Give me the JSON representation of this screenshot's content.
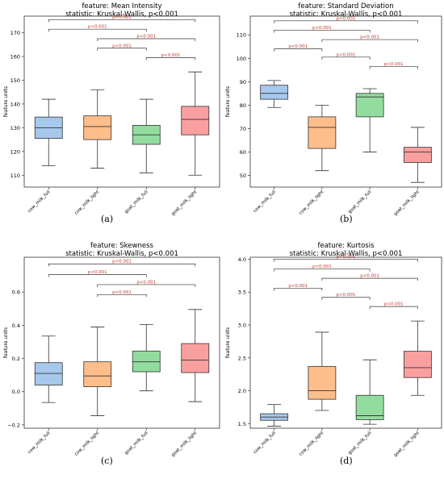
{
  "captions": [
    "(a)",
    "(b)",
    "(c)",
    "(d)"
  ],
  "colors": {
    "box": [
      "#a6c8ec",
      "#fdbe8c",
      "#93dca0",
      "#fa9fa0"
    ],
    "sig": "#c0392b",
    "axis": "#333333"
  },
  "chart_data": [
    {
      "type": "box",
      "title": "feature: Mean Intensity",
      "subtitle": "statistic: Kruskal-Wallis, p<0.001",
      "xlabel": "",
      "ylabel": "feature units",
      "categories": [
        "cow_milk_full",
        "cow_milk_light",
        "goat_milk_full",
        "goat_milk_light"
      ],
      "ylim": [
        105,
        177
      ],
      "yticks": [
        110,
        120,
        130,
        140,
        150,
        160,
        170
      ],
      "tick_labels": [
        "110",
        "120",
        "130",
        "140",
        "150",
        "160",
        "170"
      ],
      "boxes": [
        {
          "whislo": 114,
          "q1": 125.5,
          "med": 130,
          "q3": 134.5,
          "whishi": 142
        },
        {
          "whislo": 113,
          "q1": 125,
          "med": 130.5,
          "q3": 135,
          "whishi": 146
        },
        {
          "whislo": 111,
          "q1": 123,
          "med": 127,
          "q3": 131,
          "whishi": 142
        },
        {
          "whislo": 110,
          "q1": 127,
          "med": 133.5,
          "q3": 139,
          "whishi": 153.5
        }
      ],
      "comparisons": [
        {
          "pair": [
            0,
            3
          ],
          "y": 175.5,
          "label": "p<0.001"
        },
        {
          "pair": [
            0,
            2
          ],
          "y": 171.5,
          "label": "p<0.001"
        },
        {
          "pair": [
            1,
            3
          ],
          "y": 167.5,
          "label": "p<0.001"
        },
        {
          "pair": [
            1,
            2
          ],
          "y": 163.5,
          "label": "p<0.001"
        },
        {
          "pair": [
            2,
            3
          ],
          "y": 159.5,
          "label": "p<0.001"
        }
      ]
    },
    {
      "type": "box",
      "title": "feature: Standard Deviation",
      "subtitle": "statistic: Kruskal-Wallis, p<0.001",
      "xlabel": "",
      "ylabel": "feature units",
      "categories": [
        "cow_milk_full",
        "cow_milk_light",
        "goat_milk_full",
        "goat_milk_light"
      ],
      "ylim": [
        45,
        118
      ],
      "yticks": [
        50,
        60,
        70,
        80,
        90,
        100,
        110
      ],
      "tick_labels": [
        "50",
        "60",
        "70",
        "80",
        "90",
        "100",
        "110"
      ],
      "boxes": [
        {
          "whislo": 79,
          "q1": 82.5,
          "med": 85,
          "q3": 88.5,
          "whishi": 90.5
        },
        {
          "whislo": 52,
          "q1": 61.5,
          "med": 70.5,
          "q3": 75,
          "whishi": 80
        },
        {
          "whislo": 60,
          "q1": 75,
          "med": 83.5,
          "q3": 85,
          "whishi": 87
        },
        {
          "whislo": 47,
          "q1": 55.5,
          "med": 60,
          "q3": 62,
          "whishi": 70.5
        }
      ],
      "comparisons": [
        {
          "pair": [
            0,
            3
          ],
          "y": 116,
          "label": "p<0.001"
        },
        {
          "pair": [
            0,
            2
          ],
          "y": 112,
          "label": "p<0.001"
        },
        {
          "pair": [
            1,
            3
          ],
          "y": 108,
          "label": "p<0.001"
        },
        {
          "pair": [
            0,
            1
          ],
          "y": 104,
          "label": "p<0.001"
        },
        {
          "pair": [
            1,
            2
          ],
          "y": 100.5,
          "label": "p<0.001"
        },
        {
          "pair": [
            2,
            3
          ],
          "y": 96.5,
          "label": "p<0.001"
        }
      ]
    },
    {
      "type": "box",
      "title": "feature: Skewness",
      "subtitle": "statistic: Kruskal-Wallis, p<0.001",
      "xlabel": "",
      "ylabel": "feature units",
      "categories": [
        "cow_milk_full",
        "cow_milk_light",
        "goat_milk_full",
        "goat_milk_light"
      ],
      "ylim": [
        -0.22,
        0.81
      ],
      "yticks": [
        -0.2,
        0.0,
        0.2,
        0.4,
        0.6
      ],
      "tick_labels": [
        "−0.2",
        "0.0",
        "0.2",
        "0.4",
        "0.6"
      ],
      "boxes": [
        {
          "whislo": -0.065,
          "q1": 0.04,
          "med": 0.11,
          "q3": 0.175,
          "whishi": 0.335
        },
        {
          "whislo": -0.145,
          "q1": 0.03,
          "med": 0.095,
          "q3": 0.18,
          "whishi": 0.39
        },
        {
          "whislo": 0.005,
          "q1": 0.12,
          "med": 0.18,
          "q3": 0.245,
          "whishi": 0.405
        },
        {
          "whislo": -0.06,
          "q1": 0.115,
          "med": 0.19,
          "q3": 0.29,
          "whishi": 0.495
        }
      ],
      "comparisons": [
        {
          "pair": [
            0,
            3
          ],
          "y": 0.77,
          "label": "p<0.001"
        },
        {
          "pair": [
            0,
            2
          ],
          "y": 0.705,
          "label": "p<0.001"
        },
        {
          "pair": [
            1,
            3
          ],
          "y": 0.645,
          "label": "p<0.001"
        },
        {
          "pair": [
            1,
            2
          ],
          "y": 0.585,
          "label": "p<0.001"
        }
      ]
    },
    {
      "type": "box",
      "title": "feature: Kurtosis",
      "subtitle": "statistic: Kruskal-Wallis, p<0.001",
      "xlabel": "",
      "ylabel": "feature units",
      "categories": [
        "cow_milk_full",
        "cow_milk_light",
        "goat_milk_full",
        "goat_milk_light"
      ],
      "ylim": [
        1.43,
        4.03
      ],
      "yticks": [
        1.5,
        2.0,
        2.5,
        3.0,
        3.5,
        4.0
      ],
      "tick_labels": [
        "1.5",
        "2.0",
        "2.5",
        "3.0",
        "3.5",
        "4.0"
      ],
      "boxes": [
        {
          "whislo": 1.46,
          "q1": 1.55,
          "med": 1.6,
          "q3": 1.65,
          "whishi": 1.79
        },
        {
          "whislo": 1.7,
          "q1": 1.87,
          "med": 2.0,
          "q3": 2.37,
          "whishi": 2.89
        },
        {
          "whislo": 1.49,
          "q1": 1.56,
          "med": 1.62,
          "q3": 1.93,
          "whishi": 2.47
        },
        {
          "whislo": 1.93,
          "q1": 2.2,
          "med": 2.35,
          "q3": 2.6,
          "whishi": 3.06
        }
      ],
      "comparisons": [
        {
          "pair": [
            0,
            3
          ],
          "y": 4.0,
          "label": "p<0.001"
        },
        {
          "pair": [
            0,
            2
          ],
          "y": 3.85,
          "label": "p<0.001"
        },
        {
          "pair": [
            1,
            3
          ],
          "y": 3.71,
          "label": "p<0.001"
        },
        {
          "pair": [
            0,
            1
          ],
          "y": 3.56,
          "label": "p<0.001"
        },
        {
          "pair": [
            1,
            2
          ],
          "y": 3.42,
          "label": "p<0.001"
        },
        {
          "pair": [
            2,
            3
          ],
          "y": 3.28,
          "label": "p<0.001"
        }
      ]
    }
  ]
}
